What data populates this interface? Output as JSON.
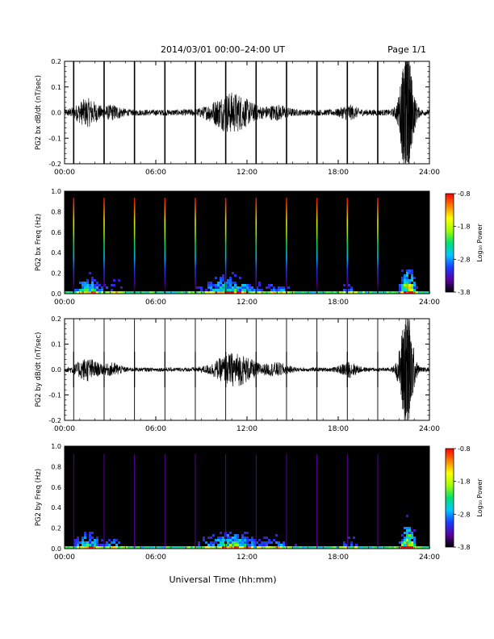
{
  "header": {
    "date_range": "2014/03/01   00:00–24:00 UT",
    "page": "Page 1/1"
  },
  "xlabel": "Universal Time (hh:mm)",
  "colorbar": {
    "label": "Log₁₀ Power",
    "ticks": [
      "-0.8",
      "-1.8",
      "-2.8",
      "-3.8"
    ],
    "range": [
      -3.8,
      -0.8
    ],
    "colors": [
      "#000000",
      "#5a00a0",
      "#1a3cff",
      "#00c8ff",
      "#00e070",
      "#a0ff00",
      "#ffff00",
      "#ff8000",
      "#ff0000"
    ]
  },
  "chart_data": [
    {
      "type": "line",
      "ylabel": "PG2 bx dB/dt (nT/sec)",
      "x_ticks": [
        "00:00",
        "06:00",
        "12:00",
        "18:00",
        "24:00"
      ],
      "xlim": [
        0,
        24
      ],
      "ylim": [
        -0.2,
        0.2
      ],
      "y_ticks": [
        "0.2",
        "0.1",
        "0.0",
        "-0.1",
        "-0.2"
      ],
      "spikes_hours": [
        0.6,
        2.6,
        4.6,
        6.6,
        8.6,
        10.6,
        12.6,
        14.6,
        16.6,
        18.6,
        20.6
      ],
      "baseline_noise": 0.012,
      "activity": [
        {
          "center": 1.5,
          "width": 0.8,
          "amp": 0.045
        },
        {
          "center": 3.2,
          "width": 0.6,
          "amp": 0.02
        },
        {
          "center": 11.0,
          "width": 1.4,
          "amp": 0.07
        },
        {
          "center": 14.0,
          "width": 0.8,
          "amp": 0.02
        },
        {
          "center": 18.7,
          "width": 0.6,
          "amp": 0.02
        },
        {
          "center": 22.5,
          "width": 0.45,
          "amp": 0.24
        }
      ]
    },
    {
      "type": "heatmap",
      "ylabel": "PG2 bx Freq (Hz)",
      "x_ticks": [
        "00:00",
        "06:00",
        "12:00",
        "18:00",
        "24:00"
      ],
      "xlim": [
        0,
        24
      ],
      "ylim": [
        0,
        1.0
      ],
      "y_ticks": [
        "1.0",
        "0.8",
        "0.6",
        "0.4",
        "0.2",
        "0.0"
      ],
      "spikes_hours": [
        0.6,
        2.6,
        4.6,
        6.6,
        8.6,
        10.6,
        12.6,
        14.6,
        16.6,
        18.6,
        20.6
      ],
      "power_range": [
        -3.8,
        -0.8
      ]
    },
    {
      "type": "line",
      "ylabel": "PG2 by dB/dt (nT/sec)",
      "x_ticks": [
        "00:00",
        "06:00",
        "12:00",
        "18:00",
        "24:00"
      ],
      "xlim": [
        0,
        24
      ],
      "ylim": [
        -0.2,
        0.2
      ],
      "y_ticks": [
        "0.2",
        "0.1",
        "0.0",
        "-0.1",
        "-0.2"
      ],
      "spikes_hours": [
        0.6,
        2.6,
        4.6,
        6.6,
        8.6,
        10.6,
        12.6,
        14.6,
        16.6,
        18.6,
        20.6
      ],
      "baseline_noise": 0.008,
      "activity": [
        {
          "center": 1.5,
          "width": 0.8,
          "amp": 0.04
        },
        {
          "center": 3.2,
          "width": 0.6,
          "amp": 0.02
        },
        {
          "center": 11.2,
          "width": 1.4,
          "amp": 0.06
        },
        {
          "center": 14.0,
          "width": 0.8,
          "amp": 0.02
        },
        {
          "center": 18.7,
          "width": 0.6,
          "amp": 0.025
        },
        {
          "center": 22.5,
          "width": 0.45,
          "amp": 0.24
        }
      ]
    },
    {
      "type": "heatmap",
      "ylabel": "PG2 by Freq (Hz)",
      "x_ticks": [
        "00:00",
        "06:00",
        "12:00",
        "18:00",
        "24:00"
      ],
      "xlim": [
        0,
        24
      ],
      "ylim": [
        0,
        1.0
      ],
      "y_ticks": [
        "1.0",
        "0.8",
        "0.6",
        "0.4",
        "0.2",
        "0.0"
      ],
      "spikes_hours": [
        0.6,
        2.6,
        4.6,
        6.6,
        8.6,
        10.6,
        12.6,
        14.6,
        16.6,
        18.6,
        20.6
      ],
      "power_range": [
        -3.8,
        -0.8
      ]
    }
  ]
}
